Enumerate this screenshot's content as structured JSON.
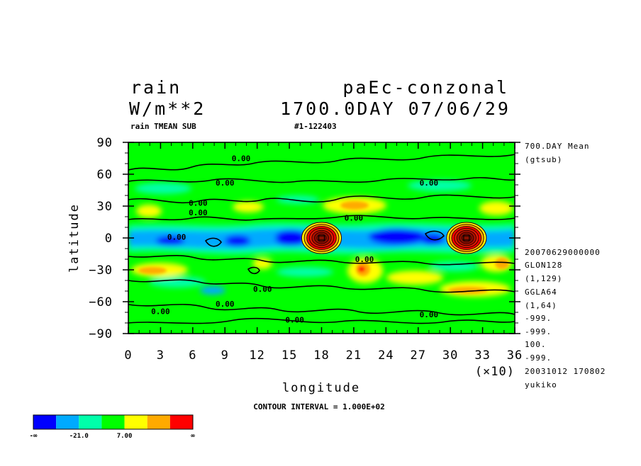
{
  "header": {
    "variable": "rain",
    "units": "W/m**2",
    "experiment": "paEc-conzonal",
    "time_stamp": "1700.0DAY 07/06/29",
    "subtitle": "rain TMEAN SUB",
    "run_id": "#1-122403"
  },
  "side_info": [
    "700.DAY Mean",
    "(gtsub)",
    "20070629000000",
    "GLON128",
    "(1,129)",
    "GGLA64",
    "(1,64)",
    "-999.",
    "-999.",
    "100.",
    "-999.",
    "20031012 170802",
    "yukiko"
  ],
  "contour_interval": "CONTOUR INTERVAL = 1.000E+02",
  "colorbar": {
    "colors": [
      "#0000ff",
      "#00aaff",
      "#00ffaa",
      "#00ff00",
      "#ffff00",
      "#ffaa00",
      "#ff0000"
    ],
    "labels": [
      "-∞",
      "-21.0",
      "7.00",
      "∞"
    ]
  },
  "chart_data": {
    "type": "heatmap",
    "title": "rain",
    "xlabel": "longitude",
    "ylabel": "latitude",
    "x_multiplier_label": "(×10)",
    "xlim": [
      0,
      36
    ],
    "ylim": [
      -90,
      90
    ],
    "x_ticks": [
      "0",
      "3",
      "6",
      "9",
      "12",
      "15",
      "18",
      "21",
      "24",
      "27",
      "30",
      "33",
      "36"
    ],
    "y_ticks": [
      "90",
      "60",
      "30",
      "0",
      "−30",
      "−60",
      "−90"
    ],
    "contour_labels": [
      {
        "text": "0.00",
        "lon": 10.5,
        "lat": 75
      },
      {
        "text": "0.00",
        "lon": 9.0,
        "lat": 52
      },
      {
        "text": "0.00",
        "lon": 28.0,
        "lat": 52
      },
      {
        "text": "0.00",
        "lon": 6.5,
        "lat": 33
      },
      {
        "text": "0.00",
        "lon": 6.5,
        "lat": 24
      },
      {
        "text": "0.00",
        "lon": 21.0,
        "lat": 19
      },
      {
        "text": "0.00",
        "lon": 4.5,
        "lat": 1
      },
      {
        "text": "0.00",
        "lon": 22.0,
        "lat": -20
      },
      {
        "text": "0.00",
        "lon": 12.5,
        "lat": -48
      },
      {
        "text": "0.00",
        "lon": 9.0,
        "lat": -62
      },
      {
        "text": "0.00",
        "lon": 3.0,
        "lat": -69
      },
      {
        "text": "0.00",
        "lon": 15.5,
        "lat": -77
      },
      {
        "text": "0.00",
        "lon": 28.0,
        "lat": -72
      }
    ],
    "features": [
      {
        "name": "tropical rain maximum",
        "lon": 18.0,
        "lat": 0,
        "level": 6
      },
      {
        "name": "tropical rain maximum",
        "lon": 31.5,
        "lat": 0,
        "level": 6
      }
    ],
    "grid": false
  }
}
